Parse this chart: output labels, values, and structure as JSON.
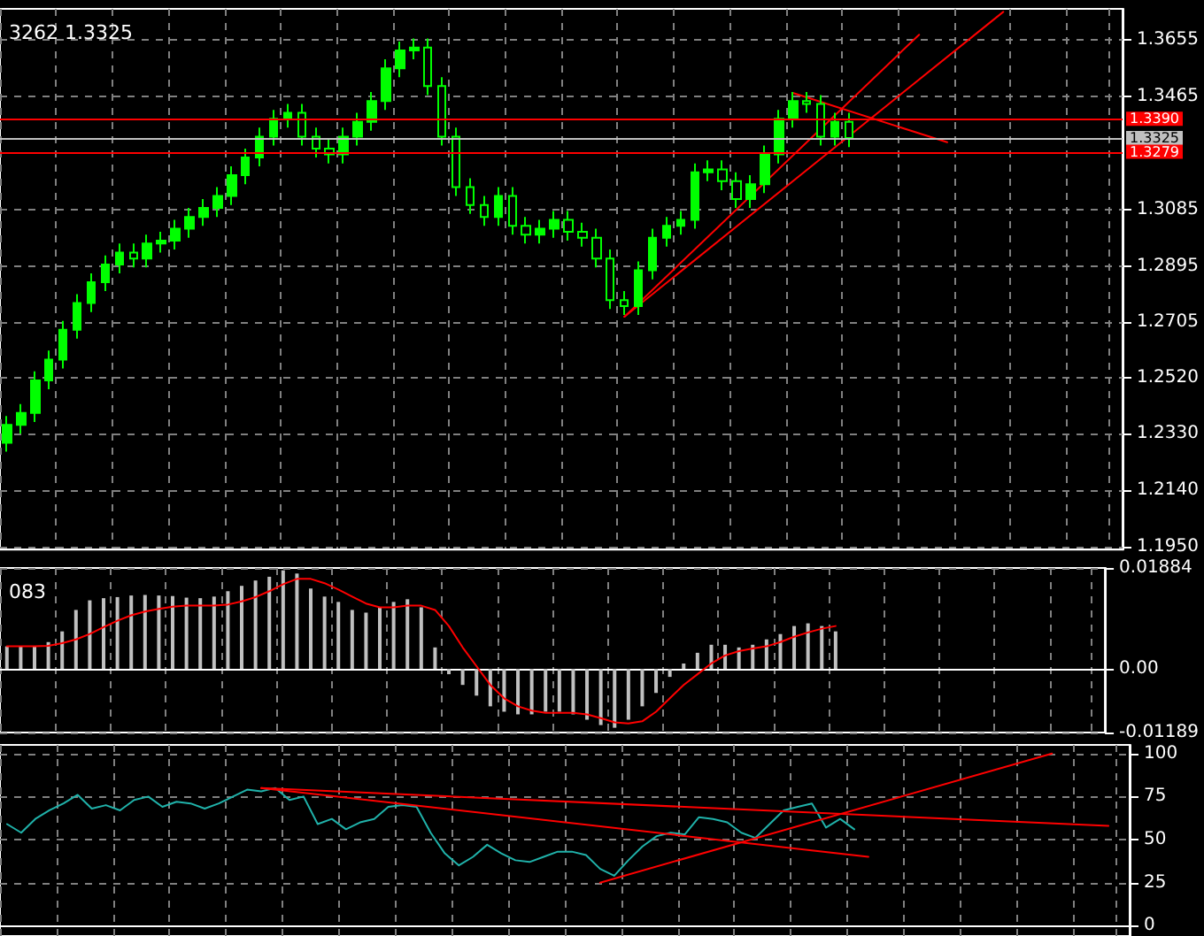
{
  "chart_data": [
    {
      "type": "candlestick",
      "title": "3262 1.3325",
      "color": "#00ff00",
      "grid": true,
      "tick_labels": "y",
      "categories": [
        null,
        null,
        null,
        null,
        null,
        null,
        null,
        null,
        null,
        null,
        null,
        null,
        null,
        null,
        null,
        null,
        null,
        null,
        null,
        null,
        null,
        null,
        null,
        null,
        null,
        null,
        null,
        null,
        null,
        null,
        null,
        null,
        null,
        null,
        null,
        null,
        null,
        null,
        null,
        null,
        null,
        null,
        null,
        null,
        null,
        null,
        null,
        null,
        null,
        null,
        null,
        null,
        null,
        null,
        null,
        null,
        null,
        null,
        null,
        null,
        null,
        null,
        null,
        null,
        null,
        null,
        null,
        null,
        null,
        null,
        null,
        null,
        null,
        null,
        null,
        null,
        null,
        null,
        null,
        null
      ],
      "ohlc": [
        [
          1.23,
          1.239,
          1.227,
          1.236
        ],
        [
          1.236,
          1.243,
          1.233,
          1.24
        ],
        [
          1.24,
          1.254,
          1.237,
          1.251
        ],
        [
          1.251,
          1.261,
          1.248,
          1.258
        ],
        [
          1.258,
          1.271,
          1.255,
          1.268
        ],
        [
          1.268,
          1.28,
          1.265,
          1.277
        ],
        [
          1.277,
          1.287,
          1.274,
          1.284
        ],
        [
          1.284,
          1.293,
          1.281,
          1.29
        ],
        [
          1.29,
          1.297,
          1.287,
          1.294
        ],
        [
          1.294,
          1.297,
          1.289,
          1.292
        ],
        [
          1.292,
          1.3,
          1.289,
          1.297
        ],
        [
          1.297,
          1.301,
          1.294,
          1.298
        ],
        [
          1.298,
          1.305,
          1.295,
          1.302
        ],
        [
          1.302,
          1.309,
          1.299,
          1.306
        ],
        [
          1.306,
          1.312,
          1.303,
          1.309
        ],
        [
          1.309,
          1.316,
          1.306,
          1.313
        ],
        [
          1.313,
          1.323,
          1.31,
          1.32
        ],
        [
          1.32,
          1.329,
          1.317,
          1.326
        ],
        [
          1.326,
          1.336,
          1.323,
          1.333
        ],
        [
          1.333,
          1.342,
          1.33,
          1.339
        ],
        [
          1.339,
          1.344,
          1.336,
          1.341
        ],
        [
          1.341,
          1.344,
          1.33,
          1.333
        ],
        [
          1.333,
          1.336,
          1.326,
          1.329
        ],
        [
          1.329,
          1.332,
          1.324,
          1.327
        ],
        [
          1.327,
          1.336,
          1.324,
          1.333
        ],
        [
          1.333,
          1.341,
          1.33,
          1.338
        ],
        [
          1.338,
          1.348,
          1.335,
          1.345
        ],
        [
          1.345,
          1.359,
          1.342,
          1.356
        ],
        [
          1.356,
          1.365,
          1.353,
          1.362
        ],
        [
          1.362,
          1.366,
          1.359,
          1.363
        ],
        [
          1.363,
          1.366,
          1.347,
          1.35
        ],
        [
          1.35,
          1.353,
          1.33,
          1.333
        ],
        [
          1.333,
          1.336,
          1.313,
          1.316
        ],
        [
          1.316,
          1.319,
          1.307,
          1.31
        ],
        [
          1.31,
          1.313,
          1.303,
          1.306
        ],
        [
          1.306,
          1.316,
          1.303,
          1.313
        ],
        [
          1.313,
          1.316,
          1.3,
          1.303
        ],
        [
          1.303,
          1.306,
          1.297,
          1.3
        ],
        [
          1.3,
          1.305,
          1.297,
          1.302
        ],
        [
          1.302,
          1.308,
          1.299,
          1.305
        ],
        [
          1.305,
          1.308,
          1.298,
          1.301
        ],
        [
          1.301,
          1.304,
          1.296,
          1.299
        ],
        [
          1.299,
          1.302,
          1.289,
          1.292
        ],
        [
          1.292,
          1.295,
          1.275,
          1.278
        ],
        [
          1.278,
          1.281,
          1.273,
          1.276
        ],
        [
          1.276,
          1.291,
          1.273,
          1.288
        ],
        [
          1.288,
          1.302,
          1.285,
          1.299
        ],
        [
          1.299,
          1.306,
          1.296,
          1.303
        ],
        [
          1.303,
          1.308,
          1.3,
          1.305
        ],
        [
          1.305,
          1.324,
          1.302,
          1.321
        ],
        [
          1.321,
          1.325,
          1.318,
          1.322
        ],
        [
          1.322,
          1.325,
          1.315,
          1.318
        ],
        [
          1.318,
          1.321,
          1.309,
          1.312
        ],
        [
          1.312,
          1.32,
          1.309,
          1.317
        ],
        [
          1.317,
          1.33,
          1.314,
          1.327
        ],
        [
          1.327,
          1.342,
          1.324,
          1.339
        ],
        [
          1.339,
          1.348,
          1.336,
          1.345
        ],
        [
          1.345,
          1.348,
          1.341,
          1.344
        ],
        [
          1.344,
          1.347,
          1.33,
          1.333
        ],
        [
          1.333,
          1.341,
          1.33,
          1.338
        ],
        [
          1.338,
          1.341,
          1.3295,
          1.3325
        ],
        null,
        null,
        null,
        null,
        null,
        null,
        null,
        null,
        null,
        null,
        null,
        null,
        null,
        null,
        null,
        null,
        null,
        null,
        null
      ],
      "series": [
        {
          "type": "line",
          "color": "#ff0000",
          "values": [
            null,
            null,
            null,
            null,
            null,
            null,
            null,
            null,
            null,
            null,
            null,
            null,
            null,
            null,
            null,
            null,
            null,
            null,
            null,
            null,
            null,
            null,
            null,
            null,
            null,
            null,
            null,
            null,
            null,
            null,
            null,
            null,
            null,
            null,
            null,
            null,
            null,
            null,
            null,
            null,
            null,
            null,
            null,
            null,
            1.2724,
            null,
            null,
            null,
            null,
            null,
            null,
            null,
            null,
            null,
            null,
            null,
            null,
            null,
            null,
            null,
            null,
            null,
            null,
            null,
            null,
            1.3673,
            null,
            null,
            null,
            null,
            null,
            null,
            null,
            null,
            null,
            null,
            null,
            null,
            null,
            null
          ]
        },
        {
          "type": "line",
          "color": "#ff0000",
          "values": [
            null,
            null,
            null,
            null,
            null,
            null,
            null,
            null,
            null,
            null,
            null,
            null,
            null,
            null,
            null,
            null,
            null,
            null,
            null,
            null,
            null,
            null,
            null,
            null,
            null,
            null,
            null,
            null,
            null,
            null,
            null,
            null,
            null,
            null,
            null,
            null,
            null,
            null,
            null,
            null,
            null,
            null,
            null,
            null,
            1.2724,
            null,
            null,
            null,
            null,
            null,
            null,
            null,
            null,
            null,
            null,
            null,
            null,
            null,
            null,
            null,
            null,
            null,
            null,
            null,
            null,
            null,
            null,
            null,
            null,
            null,
            null,
            1.375,
            null,
            null,
            null,
            null,
            null,
            null,
            null,
            null
          ]
        },
        {
          "type": "line",
          "color": "#ff0000",
          "values": [
            null,
            null,
            null,
            null,
            null,
            null,
            null,
            null,
            null,
            null,
            null,
            null,
            null,
            null,
            null,
            null,
            null,
            null,
            null,
            null,
            null,
            null,
            null,
            null,
            null,
            null,
            null,
            null,
            null,
            null,
            null,
            null,
            null,
            null,
            null,
            null,
            null,
            null,
            null,
            null,
            null,
            null,
            null,
            null,
            null,
            null,
            null,
            null,
            null,
            null,
            null,
            null,
            null,
            null,
            null,
            null,
            1.3477,
            null,
            null,
            null,
            null,
            null,
            null,
            null,
            null,
            null,
            null,
            1.3311,
            null,
            null,
            null,
            null,
            null,
            null,
            null,
            null,
            null,
            null,
            null,
            null
          ]
        }
      ],
      "ref_lines": [
        {
          "axis": "y",
          "value": 1.339,
          "label": "1.3390",
          "color": "#ff0000"
        },
        {
          "axis": "y",
          "value": 1.3325,
          "label": "1.3325",
          "color": "#c0c0c0"
        },
        {
          "axis": "y",
          "value": 1.3279,
          "label": "1.3279",
          "color": "#ff0000"
        }
      ],
      "ylim": [
        1.194,
        1.376
      ],
      "yticks": [
        {
          "value": 1.195,
          "label": "1.1950"
        },
        {
          "value": 1.214,
          "label": "1.2140"
        },
        {
          "value": 1.233,
          "label": "1.2330"
        },
        {
          "value": 1.252,
          "label": "1.2520"
        },
        1.2705,
        1.2895,
        1.3085,
        1.3465,
        1.3655
      ]
    },
    {
      "type": "bar",
      "title": "083",
      "grid": true,
      "tick_labels": "y",
      "categories": [
        null,
        null,
        null,
        null,
        null,
        null,
        null,
        null,
        null,
        null,
        null,
        null,
        null,
        null,
        null,
        null,
        null,
        null,
        null,
        null,
        null,
        null,
        null,
        null,
        null,
        null,
        null,
        null,
        null,
        null,
        null,
        null,
        null,
        null,
        null,
        null,
        null,
        null,
        null,
        null,
        null,
        null,
        null,
        null,
        null,
        null,
        null,
        null,
        null,
        null,
        null,
        null,
        null,
        null,
        null,
        null,
        null,
        null,
        null,
        null,
        null,
        null,
        null,
        null,
        null,
        null,
        null,
        null,
        null,
        null,
        null,
        null,
        null,
        null,
        null,
        null,
        null,
        null,
        null,
        null
      ],
      "series": [
        {
          "type": "bar",
          "color": "#c0c0c0",
          "values": [
            0.0042,
            0.0042,
            0.0042,
            0.005,
            0.007,
            0.011,
            0.0128,
            0.0132,
            0.0134,
            0.0137,
            0.0138,
            0.0137,
            0.0136,
            0.0133,
            0.0132,
            0.0135,
            0.0145,
            0.0155,
            0.0165,
            0.0172,
            0.0184,
            0.0178,
            0.015,
            0.0135,
            0.0125,
            0.011,
            0.0105,
            0.0115,
            0.0125,
            0.013,
            0.0115,
            0.004,
            -0.001,
            -0.003,
            -0.005,
            -0.007,
            -0.008,
            -0.0085,
            -0.0085,
            -0.008,
            -0.008,
            -0.0085,
            -0.0095,
            -0.0105,
            -0.011,
            -0.0095,
            -0.007,
            -0.0045,
            -0.0015,
            0.001,
            0.003,
            0.0045,
            0.0045,
            0.004,
            0.0045,
            0.0055,
            0.0065,
            0.008,
            0.0085,
            0.008,
            0.007,
            null,
            null,
            null,
            null,
            null,
            null,
            null,
            null,
            null,
            null,
            null,
            null,
            null,
            null,
            null,
            null,
            null,
            null,
            null
          ]
        },
        {
          "type": "line",
          "color": "#ff0000",
          "values": [
            0.0042,
            0.0042,
            0.0042,
            0.0043,
            0.0048,
            0.0055,
            0.0065,
            0.0078,
            0.009,
            0.01,
            0.0107,
            0.0112,
            0.0116,
            0.0118,
            0.0118,
            0.0118,
            0.012,
            0.0126,
            0.0134,
            0.0145,
            0.0158,
            0.0168,
            0.0168,
            0.016,
            0.0148,
            0.0135,
            0.0122,
            0.0115,
            0.0115,
            0.0118,
            0.0118,
            0.011,
            0.008,
            0.004,
            0.0005,
            -0.003,
            -0.0055,
            -0.007,
            -0.0078,
            -0.0082,
            -0.0082,
            -0.0082,
            -0.0085,
            -0.0092,
            -0.01,
            -0.0102,
            -0.0098,
            -0.008,
            -0.0055,
            -0.003,
            -0.001,
            0.001,
            0.0025,
            0.0033,
            0.0038,
            0.0042,
            0.005,
            0.006,
            0.0068,
            0.0075,
            0.008,
            null,
            null,
            null,
            null,
            null,
            null,
            null,
            null,
            null,
            null,
            null,
            null,
            null,
            null,
            null,
            null,
            null,
            null,
            null
          ]
        }
      ],
      "ylim": [
        -0.01189,
        0.01884
      ],
      "yticks": [
        -0.01189,
        {
          "value": 0,
          "label": "0.00"
        },
        0.01884
      ]
    },
    {
      "type": "line",
      "grid": true,
      "tick_labels": "y",
      "categories": [
        null,
        null,
        null,
        null,
        null,
        null,
        null,
        null,
        null,
        null,
        null,
        null,
        null,
        null,
        null,
        null,
        null,
        null,
        null,
        null,
        null,
        null,
        null,
        null,
        null,
        null,
        null,
        null,
        null,
        null,
        null,
        null,
        null,
        null,
        null,
        null,
        null,
        null,
        null,
        null,
        null,
        null,
        null,
        null,
        null,
        null,
        null,
        null,
        null,
        null,
        null,
        null,
        null,
        null,
        null,
        null,
        null,
        null,
        null,
        null,
        null,
        null,
        null,
        null,
        null,
        null,
        null,
        null,
        null,
        null,
        null,
        null,
        null,
        null,
        null,
        null,
        null,
        null,
        null,
        null
      ],
      "series": [
        {
          "color": "#20b2aa",
          "values": [
            59,
            54,
            62,
            67,
            71,
            76,
            68,
            70,
            67,
            73,
            75,
            69,
            72,
            71,
            68,
            71,
            75,
            79,
            78,
            80,
            73,
            75,
            59,
            62,
            56,
            60,
            62,
            69,
            70,
            69,
            54,
            42,
            35,
            40,
            47,
            42,
            38,
            37,
            40,
            43,
            43,
            41,
            33,
            29,
            38,
            46,
            52,
            54,
            53,
            63,
            62,
            60,
            54,
            51,
            59,
            67,
            69,
            71,
            57,
            62,
            56,
            null,
            null,
            null,
            null,
            null,
            null,
            null,
            null,
            null,
            null,
            null,
            null,
            null,
            null,
            null,
            null,
            null,
            null,
            null
          ]
        },
        {
          "color": "#ff0000",
          "values": [
            null,
            null,
            null,
            null,
            null,
            null,
            null,
            null,
            null,
            null,
            null,
            null,
            null,
            null,
            null,
            null,
            null,
            null,
            80,
            null,
            null,
            null,
            null,
            null,
            null,
            null,
            null,
            null,
            null,
            null,
            null,
            null,
            null,
            null,
            null,
            null,
            null,
            null,
            null,
            null,
            null,
            null,
            null,
            null,
            null,
            null,
            null,
            null,
            null,
            null,
            null,
            null,
            null,
            null,
            null,
            null,
            null,
            null,
            null,
            null,
            null,
            null,
            null,
            null,
            null,
            null,
            null,
            null,
            null,
            null,
            null,
            null,
            null,
            null,
            null,
            null,
            null,
            null,
            58,
            null
          ]
        },
        {
          "color": "#ff0000",
          "values": [
            null,
            null,
            null,
            null,
            null,
            null,
            null,
            null,
            null,
            null,
            null,
            null,
            null,
            null,
            null,
            null,
            null,
            null,
            80,
            null,
            null,
            null,
            null,
            null,
            null,
            null,
            null,
            null,
            null,
            null,
            null,
            null,
            null,
            null,
            null,
            null,
            null,
            null,
            null,
            null,
            null,
            null,
            null,
            null,
            null,
            null,
            null,
            null,
            null,
            null,
            null,
            null,
            null,
            null,
            null,
            null,
            null,
            null,
            null,
            null,
            null,
            40,
            null,
            null,
            null,
            null,
            null,
            null,
            null,
            null,
            null,
            null,
            null,
            null,
            null,
            null,
            null,
            null,
            null,
            null
          ]
        },
        {
          "color": "#ff0000",
          "values": [
            null,
            null,
            null,
            null,
            null,
            null,
            null,
            null,
            null,
            null,
            null,
            null,
            null,
            null,
            null,
            null,
            null,
            null,
            null,
            null,
            null,
            null,
            null,
            null,
            null,
            null,
            null,
            null,
            null,
            null,
            null,
            null,
            null,
            null,
            null,
            null,
            null,
            null,
            null,
            null,
            null,
            null,
            25,
            null,
            null,
            null,
            null,
            null,
            null,
            null,
            null,
            null,
            null,
            null,
            null,
            null,
            null,
            null,
            null,
            null,
            null,
            null,
            null,
            null,
            null,
            null,
            null,
            null,
            null,
            null,
            null,
            null,
            null,
            null,
            100,
            null,
            null,
            null,
            null,
            null
          ]
        }
      ],
      "ylim": [
        -6,
        105
      ],
      "yticks": [
        0,
        25,
        50,
        75,
        100
      ]
    }
  ]
}
